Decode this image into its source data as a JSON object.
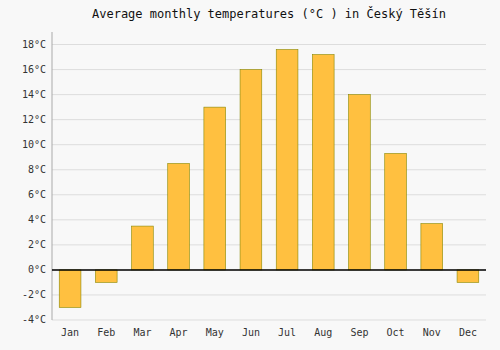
{
  "chart_data": {
    "type": "bar",
    "title": "Average monthly temperatures (°C ) in Český Těšín",
    "categories": [
      "Jan",
      "Feb",
      "Mar",
      "Apr",
      "May",
      "Jun",
      "Jul",
      "Aug",
      "Sep",
      "Oct",
      "Nov",
      "Dec"
    ],
    "values": [
      -3.0,
      -1.0,
      3.5,
      8.5,
      13.0,
      16.0,
      17.6,
      17.2,
      14.0,
      9.3,
      3.7,
      -1.0
    ],
    "color": "#FFC040",
    "ylim": [
      -4,
      19
    ],
    "yticks": [
      {
        "value": -4,
        "label": "-4°C"
      },
      {
        "value": -2,
        "label": "-2°C"
      },
      {
        "value": 0,
        "label": "0°C"
      },
      {
        "value": 2,
        "label": "2°C"
      },
      {
        "value": 4,
        "label": "4°C"
      },
      {
        "value": 6,
        "label": "6°C"
      },
      {
        "value": 8,
        "label": "8°C"
      },
      {
        "value": 10,
        "label": "10°C"
      },
      {
        "value": 12,
        "label": "12°C"
      },
      {
        "value": 14,
        "label": "14°C"
      },
      {
        "value": 16,
        "label": "16°C"
      },
      {
        "value": 18,
        "label": "18°C"
      }
    ],
    "grid": true
  }
}
